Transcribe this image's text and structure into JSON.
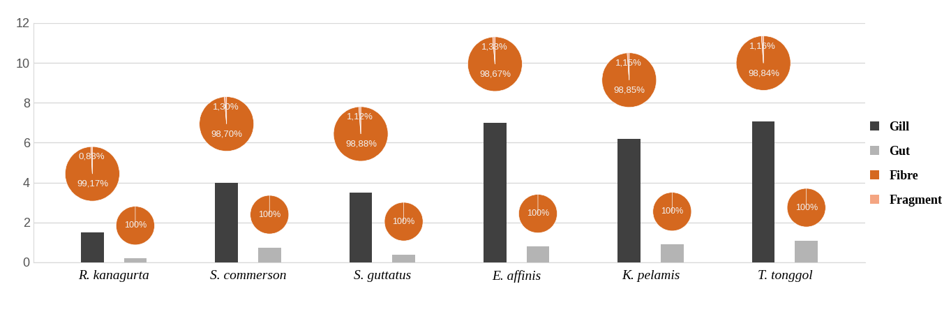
{
  "chart_data": {
    "type": "bar",
    "categories": [
      "R. kanagurta",
      "S. commerson",
      "S. guttatus",
      "E. affinis",
      "K. pelamis",
      "T. tonggol"
    ],
    "ylim": [
      0,
      12
    ],
    "yticks": [
      0,
      2,
      4,
      6,
      8,
      10,
      12
    ],
    "grid": true,
    "legend": "right",
    "series": [
      {
        "name": "Gill",
        "color": "#404040",
        "values": [
          1.5,
          4.0,
          3.5,
          7.0,
          6.2,
          7.05
        ],
        "pie": {
          "type": "pie",
          "series": [
            {
              "name": "Fibre",
              "color": "#d5681f",
              "values": [
                99.17,
                98.7,
                98.88,
                98.67,
                98.85,
                98.84
              ],
              "value_labels": [
                "99,17%",
                "98,70%",
                "98,88%",
                "98,67%",
                "98,85%",
                "98,84%"
              ]
            },
            {
              "name": "Fragment",
              "color": "#f4a582",
              "values": [
                0.83,
                1.3,
                1.12,
                1.33,
                1.15,
                1.16
              ],
              "value_labels": [
                "0,83%",
                "1,30%",
                "1,12%",
                "1,33%",
                "1,15%",
                "1,16%"
              ]
            }
          ]
        }
      },
      {
        "name": "Gut",
        "color": "#b4b4b4",
        "values": [
          0.2,
          0.75,
          0.4,
          0.8,
          0.9,
          1.1
        ],
        "pie": {
          "type": "pie",
          "series": [
            {
              "name": "Fibre",
              "color": "#d5681f",
              "values": [
                100,
                100,
                100,
                100,
                100,
                100
              ],
              "value_labels": [
                "100%",
                "100%",
                "100%",
                "100%",
                "100%",
                "100%"
              ]
            },
            {
              "name": "Fragment",
              "color": "#f4a582",
              "values": [
                0,
                0,
                0,
                0,
                0,
                0
              ],
              "value_labels": [
                null,
                null,
                null,
                null,
                null,
                null
              ]
            }
          ]
        }
      }
    ]
  }
}
